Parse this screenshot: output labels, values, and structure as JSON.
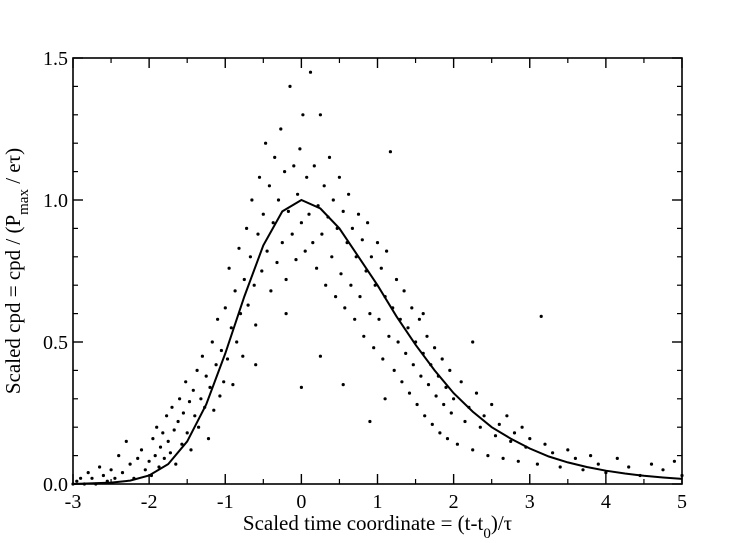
{
  "chart_data": {
    "type": "scatter",
    "xlabel": {
      "parts": [
        {
          "text": "Scaled time coordinate = (t-t"
        },
        {
          "text": "0",
          "sub": true
        },
        {
          "text": ")/τ"
        }
      ]
    },
    "ylabel": {
      "parts": [
        {
          "text": "Scaled cpd = cpd / (P"
        },
        {
          "text": "max",
          "sub": true
        },
        {
          "text": " / eτ)"
        }
      ]
    },
    "xlim": [
      -3,
      5
    ],
    "ylim": [
      0,
      1.5
    ],
    "xticks": [
      -3,
      -2,
      -1,
      0,
      1,
      2,
      3,
      4,
      5
    ],
    "xtick_labels": [
      "-3",
      "-2",
      "-1",
      "0",
      "1",
      "2",
      "3",
      "4",
      "5"
    ],
    "yticks": [
      0,
      0.5,
      1.0,
      1.5
    ],
    "ytick_labels": [
      "0.0",
      "0.5",
      "1.0",
      "1.5"
    ],
    "grid": false,
    "series": [
      {
        "kind": "points",
        "marker_color": "#000000",
        "description": "scattered measurement points",
        "points": [
          [
            -3.0,
            0.0
          ],
          [
            -2.95,
            0.01
          ],
          [
            -2.9,
            0.02
          ],
          [
            -2.85,
            0.0
          ],
          [
            -2.8,
            0.04
          ],
          [
            -2.75,
            0.02
          ],
          [
            -2.7,
            0.0
          ],
          [
            -2.65,
            0.06
          ],
          [
            -2.6,
            0.03
          ],
          [
            -2.55,
            0.01
          ],
          [
            -2.5,
            0.05
          ],
          [
            -2.45,
            0.02
          ],
          [
            -2.4,
            0.1
          ],
          [
            -2.35,
            0.04
          ],
          [
            -2.3,
            0.15
          ],
          [
            -2.25,
            0.07
          ],
          [
            -2.2,
            0.02
          ],
          [
            -2.15,
            0.09
          ],
          [
            -2.1,
            0.12
          ],
          [
            -2.05,
            0.05
          ],
          [
            -2.0,
            0.08
          ],
          [
            -1.97,
            0.03
          ],
          [
            -1.95,
            0.16
          ],
          [
            -1.92,
            0.1
          ],
          [
            -1.9,
            0.2
          ],
          [
            -1.87,
            0.06
          ],
          [
            -1.85,
            0.13
          ],
          [
            -1.82,
            0.18
          ],
          [
            -1.8,
            0.09
          ],
          [
            -1.77,
            0.24
          ],
          [
            -1.75,
            0.15
          ],
          [
            -1.72,
            0.11
          ],
          [
            -1.7,
            0.27
          ],
          [
            -1.67,
            0.19
          ],
          [
            -1.65,
            0.07
          ],
          [
            -1.62,
            0.22
          ],
          [
            -1.6,
            0.3
          ],
          [
            -1.57,
            0.14
          ],
          [
            -1.55,
            0.25
          ],
          [
            -1.52,
            0.36
          ],
          [
            -1.5,
            0.18
          ],
          [
            -1.47,
            0.29
          ],
          [
            -1.45,
            0.12
          ],
          [
            -1.42,
            0.33
          ],
          [
            -1.4,
            0.24
          ],
          [
            -1.37,
            0.4
          ],
          [
            -1.35,
            0.2
          ],
          [
            -1.32,
            0.3
          ],
          [
            -1.3,
            0.45
          ],
          [
            -1.27,
            0.27
          ],
          [
            -1.25,
            0.38
          ],
          [
            -1.22,
            0.16
          ],
          [
            -1.2,
            0.34
          ],
          [
            -1.17,
            0.5
          ],
          [
            -1.15,
            0.26
          ],
          [
            -1.12,
            0.42
          ],
          [
            -1.1,
            0.58
          ],
          [
            -1.07,
            0.31
          ],
          [
            -1.05,
            0.47
          ],
          [
            -1.02,
            0.36
          ],
          [
            -1.0,
            0.62
          ],
          [
            -0.97,
            0.44
          ],
          [
            -0.95,
            0.76
          ],
          [
            -0.92,
            0.55
          ],
          [
            -0.9,
            0.35
          ],
          [
            -0.87,
            0.68
          ],
          [
            -0.85,
            0.5
          ],
          [
            -0.82,
            0.83
          ],
          [
            -0.8,
            0.6
          ],
          [
            -0.77,
            0.45
          ],
          [
            -0.75,
            0.72
          ],
          [
            -0.72,
            0.9
          ],
          [
            -0.7,
            0.63
          ],
          [
            -0.67,
            0.8
          ],
          [
            -0.65,
            1.0
          ],
          [
            -0.62,
            0.7
          ],
          [
            -0.6,
            0.56
          ],
          [
            -0.57,
            0.88
          ],
          [
            -0.55,
            1.08
          ],
          [
            -0.52,
            0.75
          ],
          [
            -0.5,
            0.95
          ],
          [
            -0.47,
            1.2
          ],
          [
            -0.45,
            0.82
          ],
          [
            -0.42,
            1.05
          ],
          [
            -0.4,
            0.68
          ],
          [
            -0.37,
            0.92
          ],
          [
            -0.35,
            1.15
          ],
          [
            -0.32,
            0.78
          ],
          [
            -0.3,
            1.0
          ],
          [
            -0.27,
            1.25
          ],
          [
            -0.25,
            0.85
          ],
          [
            -0.22,
            1.1
          ],
          [
            -0.2,
            0.72
          ],
          [
            -0.17,
            0.96
          ],
          [
            -0.15,
            1.4
          ],
          [
            -0.12,
            0.88
          ],
          [
            -0.1,
            1.12
          ],
          [
            -0.07,
            0.79
          ],
          [
            -0.05,
            1.02
          ],
          [
            -0.02,
            1.18
          ],
          [
            0.0,
            0.92
          ],
          [
            0.02,
            1.3
          ],
          [
            0.05,
            0.82
          ],
          [
            0.07,
            1.08
          ],
          [
            0.1,
            0.95
          ],
          [
            0.12,
            1.45
          ],
          [
            0.15,
            0.85
          ],
          [
            0.17,
            1.12
          ],
          [
            0.2,
            0.76
          ],
          [
            0.22,
            0.98
          ],
          [
            0.25,
            1.3
          ],
          [
            0.27,
            0.88
          ],
          [
            0.3,
            1.05
          ],
          [
            0.32,
            0.7
          ],
          [
            0.35,
            0.94
          ],
          [
            0.37,
            1.15
          ],
          [
            0.4,
            0.8
          ],
          [
            0.42,
            1.0
          ],
          [
            0.45,
            0.66
          ],
          [
            0.47,
            0.9
          ],
          [
            0.5,
            1.08
          ],
          [
            0.52,
            0.74
          ],
          [
            0.55,
            0.96
          ],
          [
            0.57,
            0.62
          ],
          [
            0.6,
            0.85
          ],
          [
            0.62,
            1.02
          ],
          [
            0.65,
            0.7
          ],
          [
            0.67,
            0.9
          ],
          [
            0.7,
            0.58
          ],
          [
            0.72,
            0.8
          ],
          [
            0.75,
            0.95
          ],
          [
            0.77,
            0.66
          ],
          [
            0.8,
            0.86
          ],
          [
            0.82,
            0.52
          ],
          [
            0.85,
            0.75
          ],
          [
            0.87,
            0.92
          ],
          [
            0.9,
            0.6
          ],
          [
            0.92,
            0.8
          ],
          [
            0.95,
            0.48
          ],
          [
            0.97,
            0.7
          ],
          [
            1.0,
            0.85
          ],
          [
            1.02,
            0.58
          ],
          [
            1.05,
            0.76
          ],
          [
            1.07,
            0.44
          ],
          [
            1.1,
            0.66
          ],
          [
            1.12,
            0.82
          ],
          [
            1.15,
            0.52
          ],
          [
            1.17,
            1.17
          ],
          [
            1.2,
            0.62
          ],
          [
            1.22,
            0.4
          ],
          [
            1.25,
            0.72
          ],
          [
            1.27,
            0.5
          ],
          [
            1.3,
            0.58
          ],
          [
            1.32,
            0.36
          ],
          [
            1.35,
            0.68
          ],
          [
            1.37,
            0.46
          ],
          [
            1.4,
            0.55
          ],
          [
            1.42,
            0.32
          ],
          [
            1.45,
            0.62
          ],
          [
            1.47,
            0.42
          ],
          [
            1.5,
            0.5
          ],
          [
            1.52,
            0.28
          ],
          [
            1.55,
            0.58
          ],
          [
            1.57,
            0.38
          ],
          [
            1.6,
            0.46
          ],
          [
            1.62,
            0.24
          ],
          [
            1.65,
            0.52
          ],
          [
            1.67,
            0.35
          ],
          [
            1.7,
            0.42
          ],
          [
            1.72,
            0.21
          ],
          [
            1.75,
            0.48
          ],
          [
            1.77,
            0.31
          ],
          [
            1.8,
            0.38
          ],
          [
            1.82,
            0.18
          ],
          [
            1.85,
            0.44
          ],
          [
            1.87,
            0.28
          ],
          [
            1.9,
            0.34
          ],
          [
            1.92,
            0.16
          ],
          [
            1.95,
            0.4
          ],
          [
            1.97,
            0.25
          ],
          [
            2.0,
            0.3
          ],
          [
            2.05,
            0.14
          ],
          [
            2.1,
            0.36
          ],
          [
            2.15,
            0.22
          ],
          [
            2.2,
            0.27
          ],
          [
            2.25,
            0.12
          ],
          [
            2.3,
            0.32
          ],
          [
            2.35,
            0.2
          ],
          [
            2.4,
            0.24
          ],
          [
            2.45,
            0.1
          ],
          [
            2.5,
            0.28
          ],
          [
            2.55,
            0.17
          ],
          [
            2.6,
            0.21
          ],
          [
            2.65,
            0.09
          ],
          [
            2.7,
            0.24
          ],
          [
            2.75,
            0.15
          ],
          [
            2.8,
            0.18
          ],
          [
            2.85,
            0.08
          ],
          [
            2.9,
            0.2
          ],
          [
            2.95,
            0.13
          ],
          [
            3.0,
            0.16
          ],
          [
            3.1,
            0.07
          ],
          [
            3.2,
            0.14
          ],
          [
            3.3,
            0.11
          ],
          [
            3.4,
            0.06
          ],
          [
            3.5,
            0.12
          ],
          [
            3.6,
            0.09
          ],
          [
            3.7,
            0.05
          ],
          [
            3.8,
            0.1
          ],
          [
            3.9,
            0.07
          ],
          [
            4.0,
            0.04
          ],
          [
            4.15,
            0.09
          ],
          [
            4.3,
            0.06
          ],
          [
            4.45,
            0.03
          ],
          [
            4.6,
            0.07
          ],
          [
            4.75,
            0.05
          ],
          [
            4.9,
            0.08
          ],
          [
            5.0,
            0.03
          ],
          [
            3.15,
            0.59
          ],
          [
            2.25,
            0.5
          ],
          [
            -0.6,
            0.42
          ],
          [
            0.0,
            0.34
          ],
          [
            0.25,
            0.45
          ],
          [
            0.9,
            0.22
          ],
          [
            1.1,
            0.3
          ],
          [
            0.55,
            0.35
          ],
          [
            -0.2,
            0.6
          ],
          [
            1.6,
            0.6
          ]
        ]
      },
      {
        "kind": "curve",
        "line_color": "#000000",
        "description": "smooth fitted curve, peak 1.0 at x = 0",
        "points": [
          [
            -3.0,
            0.0
          ],
          [
            -2.5,
            0.005
          ],
          [
            -2.25,
            0.012
          ],
          [
            -2.0,
            0.03
          ],
          [
            -1.75,
            0.07
          ],
          [
            -1.5,
            0.15
          ],
          [
            -1.25,
            0.28
          ],
          [
            -1.0,
            0.46
          ],
          [
            -0.75,
            0.66
          ],
          [
            -0.5,
            0.84
          ],
          [
            -0.25,
            0.96
          ],
          [
            0.0,
            1.0
          ],
          [
            0.25,
            0.97
          ],
          [
            0.5,
            0.9
          ],
          [
            0.75,
            0.8
          ],
          [
            1.0,
            0.7
          ],
          [
            1.25,
            0.59
          ],
          [
            1.5,
            0.49
          ],
          [
            1.75,
            0.4
          ],
          [
            2.0,
            0.32
          ],
          [
            2.25,
            0.255
          ],
          [
            2.5,
            0.2
          ],
          [
            2.75,
            0.16
          ],
          [
            3.0,
            0.125
          ],
          [
            3.25,
            0.097
          ],
          [
            3.5,
            0.076
          ],
          [
            3.75,
            0.06
          ],
          [
            4.0,
            0.047
          ],
          [
            4.25,
            0.037
          ],
          [
            4.5,
            0.029
          ],
          [
            4.75,
            0.023
          ],
          [
            5.0,
            0.018
          ]
        ]
      }
    ]
  }
}
